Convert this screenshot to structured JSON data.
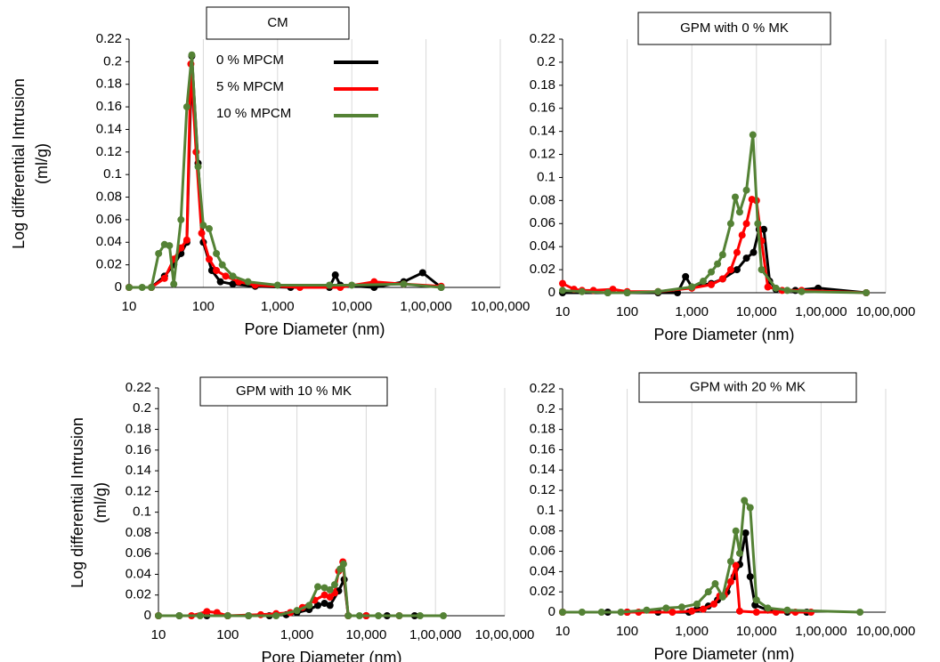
{
  "chart_data": [
    {
      "type": "line",
      "title": "CM",
      "xscale": "log",
      "grid": "x",
      "legend": true,
      "xlabel": "Pore Diameter  (nm)",
      "ylabel": [
        "Log differential Intrusion",
        "(ml/g)"
      ],
      "xlim": [
        10,
        1000000
      ],
      "ylim": [
        0,
        0.22
      ],
      "xticks": [
        10,
        100,
        {
          "value": 1000,
          "label": "1,000"
        },
        {
          "value": 10000,
          "label": "10,000"
        },
        {
          "value": 100000,
          "label": "1,00,000"
        },
        {
          "value": 1000000,
          "label": "10,00,000"
        }
      ],
      "yticks": [
        0,
        0.02,
        0.04,
        0.06,
        0.08,
        0.1,
        0.12,
        0.14,
        0.16,
        0.18,
        0.2,
        0.22
      ],
      "series": [
        {
          "name": "0 % MPCM",
          "color": "#000000",
          "x": [
            10,
            20,
            30,
            40,
            50,
            60,
            70,
            85,
            100,
            130,
            170,
            250,
            500,
            1500,
            5000,
            6000,
            7000,
            20000,
            50000,
            90000,
            160000
          ],
          "values": [
            0,
            0,
            0.01,
            0.02,
            0.03,
            0.04,
            0.205,
            0.11,
            0.04,
            0.015,
            0.005,
            0.003,
            0.001,
            0,
            0,
            0.011,
            0.002,
            0,
            0.005,
            0.013,
            0
          ]
        },
        {
          "name": "5 % MPCM",
          "color": "#ff0000",
          "x": [
            10,
            20,
            30,
            40,
            50,
            60,
            68,
            80,
            95,
            120,
            150,
            200,
            300,
            500,
            2000,
            7000,
            20000,
            50000,
            160000
          ],
          "values": [
            0,
            0,
            0.008,
            0.025,
            0.035,
            0.042,
            0.198,
            0.12,
            0.048,
            0.025,
            0.015,
            0.01,
            0.005,
            0.002,
            0,
            0,
            0.005,
            0.003,
            0.001
          ]
        },
        {
          "name": "10 % MPCM",
          "color": "#548235",
          "x": [
            10,
            15,
            20,
            25,
            30,
            35,
            40,
            50,
            60,
            70,
            85,
            100,
            120,
            150,
            180,
            250,
            400,
            1000,
            5000,
            10000,
            50000,
            160000
          ],
          "values": [
            0,
            0,
            0,
            0.03,
            0.038,
            0.037,
            0.003,
            0.06,
            0.16,
            0.206,
            0.107,
            0.055,
            0.052,
            0.03,
            0.02,
            0.01,
            0.005,
            0.002,
            0.002,
            0.002,
            0.003,
            0
          ]
        }
      ]
    },
    {
      "type": "line",
      "title": "GPM with 0 % MK",
      "xscale": "log",
      "grid": "x",
      "legend": false,
      "xlabel": "Pore Diameter  (nm)",
      "xlim": [
        10,
        1000000
      ],
      "ylim": [
        0,
        0.22
      ],
      "xticks": [
        10,
        100,
        {
          "value": 1000,
          "label": "1,000"
        },
        {
          "value": 10000,
          "label": "10,000"
        },
        {
          "value": 100000,
          "label": "1,00,000"
        },
        {
          "value": 1000000,
          "label": "10,00,000"
        }
      ],
      "yticks": [
        0,
        0.02,
        0.04,
        0.06,
        0.08,
        0.1,
        0.12,
        0.14,
        0.16,
        0.18,
        0.2,
        0.22
      ],
      "series": [
        {
          "color": "#000000",
          "x": [
            10,
            50,
            100,
            300,
            600,
            800,
            1000,
            2000,
            3000,
            5000,
            7000,
            9000,
            11000,
            13000,
            16000,
            20000,
            40000,
            90000,
            500000
          ],
          "values": [
            0,
            0,
            0,
            0,
            0,
            0.014,
            0.005,
            0.008,
            0.012,
            0.02,
            0.03,
            0.035,
            0.055,
            0.055,
            0.01,
            0.003,
            0.002,
            0.004,
            0
          ]
        },
        {
          "color": "#ff0000",
          "x": [
            10,
            15,
            20,
            30,
            60,
            100,
            300,
            1000,
            2000,
            3000,
            4000,
            5000,
            6000,
            7000,
            8500,
            10000,
            12000,
            15000,
            25000,
            50000,
            500000
          ],
          "values": [
            0.008,
            0.003,
            0.002,
            0.002,
            0.003,
            0.001,
            0.001,
            0.004,
            0.007,
            0.012,
            0.02,
            0.035,
            0.05,
            0.06,
            0.081,
            0.08,
            0.045,
            0.005,
            0.002,
            0.002,
            0
          ]
        },
        {
          "color": "#548235",
          "x": [
            10,
            20,
            50,
            100,
            300,
            1000,
            1500,
            2000,
            2500,
            3000,
            4000,
            4700,
            5500,
            7000,
            8800,
            10500,
            12000,
            20000,
            30000,
            50000,
            500000
          ],
          "values": [
            0.002,
            0.001,
            0,
            0,
            0.001,
            0.005,
            0.01,
            0.018,
            0.025,
            0.033,
            0.06,
            0.083,
            0.07,
            0.089,
            0.137,
            0.06,
            0.02,
            0.004,
            0.002,
            0.001,
            0
          ]
        }
      ]
    },
    {
      "type": "line",
      "title": "GPM with 10 % MK",
      "xscale": "log",
      "grid": "x",
      "legend": false,
      "xlabel": "Pore Diameter  (nm)",
      "ylabel": [
        "Log differential Intrusion",
        "(ml/g)"
      ],
      "xlim": [
        10,
        1000000
      ],
      "ylim": [
        0,
        0.22
      ],
      "xticks": [
        10,
        100,
        {
          "value": 1000,
          "label": "1,000"
        },
        {
          "value": 10000,
          "label": "10,000"
        },
        {
          "value": 100000,
          "label": "1,00,000"
        },
        {
          "value": 1000000,
          "label": "10,00,000"
        }
      ],
      "yticks": [
        0,
        0.02,
        0.04,
        0.06,
        0.08,
        0.1,
        0.12,
        0.14,
        0.16,
        0.18,
        0.2,
        0.22
      ],
      "series": [
        {
          "color": "#000000",
          "x": [
            10,
            20,
            50,
            100,
            200,
            400,
            700,
            1000,
            1500,
            2000,
            2500,
            3000,
            4000,
            4800,
            5500,
            10000,
            20000,
            50000
          ],
          "values": [
            0,
            0,
            0,
            0,
            0,
            0,
            0.001,
            0.003,
            0.006,
            0.01,
            0.012,
            0.01,
            0.024,
            0.035,
            0,
            0,
            0,
            0
          ]
        },
        {
          "color": "#ff0000",
          "x": [
            10,
            30,
            50,
            70,
            100,
            300,
            500,
            800,
            1200,
            1800,
            2500,
            3000,
            3500,
            4000,
            4600,
            5500,
            10000,
            30000
          ],
          "values": [
            0,
            0,
            0.004,
            0.003,
            0,
            0.001,
            0.002,
            0.003,
            0.008,
            0.015,
            0.02,
            0.018,
            0.022,
            0.043,
            0.052,
            0,
            0,
            0
          ]
        },
        {
          "color": "#548235",
          "x": [
            10,
            20,
            40,
            100,
            200,
            500,
            1000,
            1500,
            2000,
            2500,
            3000,
            3500,
            4200,
            4700,
            5500,
            8000,
            15000,
            30000,
            60000,
            130000
          ],
          "values": [
            0,
            0,
            0,
            0,
            0,
            0,
            0.005,
            0.01,
            0.028,
            0.027,
            0.025,
            0.03,
            0.045,
            0.05,
            0,
            0,
            0,
            0,
            0,
            0
          ]
        }
      ]
    },
    {
      "type": "line",
      "title": "GPM with 20 % MK",
      "xscale": "log",
      "grid": "x",
      "legend": false,
      "xlabel": "Pore Diameter  (nm)",
      "xlim": [
        10,
        1000000
      ],
      "ylim": [
        0,
        0.22
      ],
      "xticks": [
        10,
        100,
        {
          "value": 1000,
          "label": "1,000"
        },
        {
          "value": 10000,
          "label": "10,000"
        },
        {
          "value": 100000,
          "label": "1,00,000"
        },
        {
          "value": 1000000,
          "label": "10,00,000"
        }
      ],
      "yticks": [
        0,
        0.02,
        0.04,
        0.06,
        0.08,
        0.1,
        0.12,
        0.14,
        0.16,
        0.18,
        0.2,
        0.22
      ],
      "series": [
        {
          "color": "#000000",
          "x": [
            10,
            50,
            100,
            300,
            900,
            1200,
            1800,
            2500,
            3500,
            4500,
            5500,
            6800,
            8000,
            9500,
            15000,
            30000,
            60000
          ],
          "values": [
            0,
            0,
            0,
            0,
            0,
            0.003,
            0.006,
            0.012,
            0.02,
            0.035,
            0.047,
            0.078,
            0.035,
            0.007,
            0.002,
            0,
            0
          ]
        },
        {
          "color": "#ff0000",
          "x": [
            10,
            100,
            150,
            500,
            1000,
            1500,
            2200,
            2700,
            3200,
            4000,
            4800,
            5500,
            10000,
            20000,
            40000,
            70000
          ],
          "values": [
            0,
            0,
            0,
            0,
            0.001,
            0.003,
            0.008,
            0.016,
            0.017,
            0.03,
            0.046,
            0.001,
            0,
            0,
            0,
            0
          ]
        },
        {
          "color": "#548235",
          "x": [
            10,
            20,
            40,
            80,
            200,
            400,
            700,
            1200,
            1800,
            2300,
            3000,
            4000,
            4800,
            5500,
            6500,
            8000,
            10000,
            15000,
            30000,
            400000
          ],
          "values": [
            0,
            0,
            0,
            0,
            0.002,
            0.004,
            0.005,
            0.008,
            0.02,
            0.028,
            0.015,
            0.05,
            0.08,
            0.058,
            0.11,
            0.103,
            0.012,
            0.004,
            0.002,
            0
          ]
        }
      ]
    }
  ]
}
